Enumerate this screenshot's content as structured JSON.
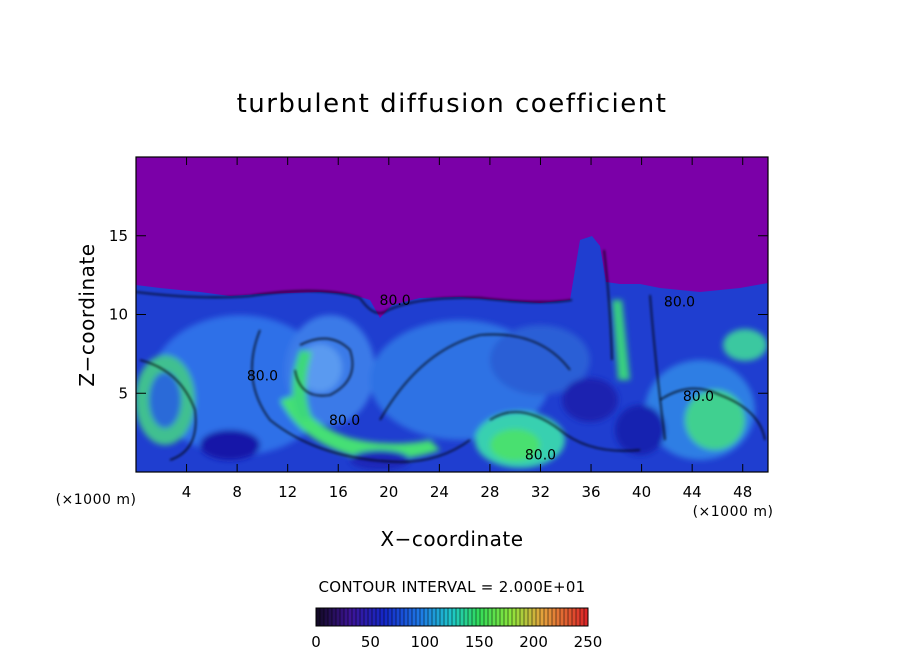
{
  "chart_data": {
    "type": "heatmap",
    "title": "turbulent diffusion coefficient",
    "xlabel": "X−coordinate",
    "ylabel": "Z−coordinate",
    "x_unit": "(×1000 m)",
    "z_unit": "(×1000 m)",
    "xlim": [
      0,
      50
    ],
    "ylim": [
      0,
      20
    ],
    "x_ticks": [
      4,
      8,
      12,
      16,
      20,
      24,
      28,
      32,
      36,
      40,
      44,
      48
    ],
    "y_ticks": [
      5,
      10,
      15
    ],
    "contour_interval_text": "CONTOUR INTERVAL = 2.000E+01",
    "contour_labels": [
      {
        "text": "80.0",
        "x": 10.0,
        "z": 5.8
      },
      {
        "text": "80.0",
        "x": 16.5,
        "z": 3.0
      },
      {
        "text": "80.0",
        "x": 20.5,
        "z": 10.6
      },
      {
        "text": "80.0",
        "x": 32.0,
        "z": 0.8
      },
      {
        "text": "80.0",
        "x": 43.0,
        "z": 10.5
      },
      {
        "text": "80.0",
        "x": 44.5,
        "z": 4.5
      }
    ],
    "colorbar": {
      "min": 0,
      "max": 250,
      "ticks": [
        0,
        50,
        100,
        150,
        200,
        250
      ]
    },
    "colors": {
      "background": "#7b00a8",
      "low": "#1a1aa8",
      "mid": "#3a7ae8",
      "high": "#40e070",
      "cyan": "#30b0e0"
    }
  }
}
